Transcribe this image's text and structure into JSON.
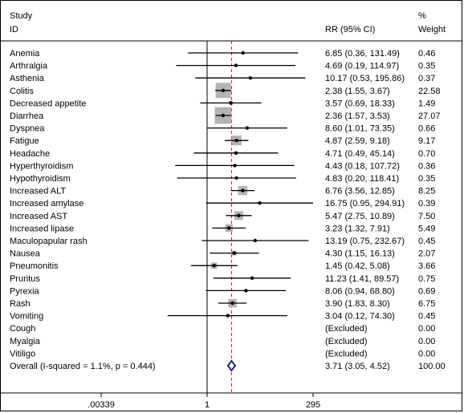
{
  "chart_data": {
    "type": "forest",
    "header": {
      "study_label_1": "Study",
      "study_label_2": "ID",
      "effect_label": "RR (95% CI)",
      "weight_label_1": "%",
      "weight_label_2": "Weight"
    },
    "x_scale": "log",
    "null_value": 1,
    "overall_line_value": 3.71,
    "x_ticks": [
      {
        "value": 0.00339,
        "label": ".00339"
      },
      {
        "value": 1,
        "label": "1"
      },
      {
        "value": 295,
        "label": "295"
      }
    ],
    "studies": [
      {
        "id": "Anemia",
        "rr": 6.85,
        "lo": 0.36,
        "hi": 131.49,
        "ci_text": "6.85 (0.36, 131.49)",
        "weight": 0.46,
        "weight_text": "0.46"
      },
      {
        "id": "Arthralgia",
        "rr": 4.69,
        "lo": 0.19,
        "hi": 114.97,
        "ci_text": "4.69 (0.19, 114.97)",
        "weight": 0.35,
        "weight_text": "0.35"
      },
      {
        "id": "Asthenia",
        "rr": 10.17,
        "lo": 0.53,
        "hi": 195.86,
        "ci_text": "10.17 (0.53, 195.86)",
        "weight": 0.37,
        "weight_text": "0.37"
      },
      {
        "id": "Colitis",
        "rr": 2.38,
        "lo": 1.55,
        "hi": 3.67,
        "ci_text": "2.38 (1.55, 3.67)",
        "weight": 22.58,
        "weight_text": "22.58"
      },
      {
        "id": "Decreased appetite",
        "rr": 3.57,
        "lo": 0.69,
        "hi": 18.33,
        "ci_text": "3.57 (0.69, 18.33)",
        "weight": 1.49,
        "weight_text": "1.49"
      },
      {
        "id": "Diarrhea",
        "rr": 2.36,
        "lo": 1.57,
        "hi": 3.53,
        "ci_text": "2.36 (1.57, 3.53)",
        "weight": 27.07,
        "weight_text": "27.07"
      },
      {
        "id": "Dyspnea",
        "rr": 8.6,
        "lo": 1.01,
        "hi": 73.35,
        "ci_text": "8.60 (1.01, 73.35)",
        "weight": 0.66,
        "weight_text": "0.66"
      },
      {
        "id": "Fatigue",
        "rr": 4.87,
        "lo": 2.59,
        "hi": 9.18,
        "ci_text": "4.87 (2.59, 9.18)",
        "weight": 9.17,
        "weight_text": "9.17"
      },
      {
        "id": "Headache",
        "rr": 4.71,
        "lo": 0.49,
        "hi": 45.14,
        "ci_text": "4.71 (0.49, 45.14)",
        "weight": 0.7,
        "weight_text": "0.70"
      },
      {
        "id": "Hyperthyroidism",
        "rr": 4.43,
        "lo": 0.18,
        "hi": 107.72,
        "ci_text": "4.43 (0.18, 107.72)",
        "weight": 0.36,
        "weight_text": "0.36"
      },
      {
        "id": "Hypothyroidism",
        "rr": 4.83,
        "lo": 0.2,
        "hi": 118.41,
        "ci_text": "4.83 (0.20, 118.41)",
        "weight": 0.35,
        "weight_text": "0.35"
      },
      {
        "id": "Increased ALT",
        "rr": 6.76,
        "lo": 3.56,
        "hi": 12.85,
        "ci_text": "6.76 (3.56, 12.85)",
        "weight": 8.25,
        "weight_text": "8.25"
      },
      {
        "id": "Increased amylase",
        "rr": 16.75,
        "lo": 0.95,
        "hi": 294.91,
        "ci_text": "16.75 (0.95, 294.91)",
        "weight": 0.39,
        "weight_text": "0.39"
      },
      {
        "id": "Increased AST",
        "rr": 5.47,
        "lo": 2.75,
        "hi": 10.89,
        "ci_text": "5.47 (2.75, 10.89)",
        "weight": 7.5,
        "weight_text": "7.50"
      },
      {
        "id": "Increased lipase",
        "rr": 3.23,
        "lo": 1.32,
        "hi": 7.91,
        "ci_text": "3.23 (1.32, 7.91)",
        "weight": 5.49,
        "weight_text": "5.49"
      },
      {
        "id": "Maculopapular rash",
        "rr": 13.19,
        "lo": 0.75,
        "hi": 232.67,
        "ci_text": "13.19 (0.75, 232.67)",
        "weight": 0.45,
        "weight_text": "0.45"
      },
      {
        "id": "Nausea",
        "rr": 4.3,
        "lo": 1.15,
        "hi": 16.13,
        "ci_text": "4.30 (1.15, 16.13)",
        "weight": 2.07,
        "weight_text": "2.07"
      },
      {
        "id": "Pneumonitis",
        "rr": 1.45,
        "lo": 0.42,
        "hi": 5.08,
        "ci_text": "1.45 (0.42, 5.08)",
        "weight": 3.66,
        "weight_text": "3.66"
      },
      {
        "id": "Pruritus",
        "rr": 11.23,
        "lo": 1.41,
        "hi": 89.57,
        "ci_text": "11.23 (1.41, 89.57)",
        "weight": 0.75,
        "weight_text": "0.75"
      },
      {
        "id": "Pyrexia",
        "rr": 8.06,
        "lo": 0.94,
        "hi": 68.8,
        "ci_text": "8.06 (0.94, 68.80)",
        "weight": 0.69,
        "weight_text": "0.69"
      },
      {
        "id": "Rash",
        "rr": 3.9,
        "lo": 1.83,
        "hi": 8.3,
        "ci_text": "3.90 (1.83, 8.30)",
        "weight": 6.75,
        "weight_text": "6.75"
      },
      {
        "id": "Vomiting",
        "rr": 3.04,
        "lo": 0.12,
        "hi": 74.3,
        "ci_text": "3.04 (0.12, 74.30)",
        "weight": 0.45,
        "weight_text": "0.45"
      },
      {
        "id": "Cough",
        "rr": null,
        "lo": null,
        "hi": null,
        "ci_text": "(Excluded)",
        "weight": 0.0,
        "weight_text": "0.00"
      },
      {
        "id": "Myalgia",
        "rr": null,
        "lo": null,
        "hi": null,
        "ci_text": "(Excluded)",
        "weight": 0.0,
        "weight_text": "0.00"
      },
      {
        "id": "Vitiligo",
        "rr": null,
        "lo": null,
        "hi": null,
        "ci_text": "(Excluded)",
        "weight": 0.0,
        "weight_text": "0.00"
      }
    ],
    "overall": {
      "id": "Overall  (I-squared = 1.1%, p = 0.444)",
      "rr": 3.71,
      "lo": 3.05,
      "hi": 4.52,
      "ci_text": "3.71 (3.05, 4.52)",
      "weight_text": "100.00"
    },
    "colors": {
      "weight_box": "#b3b3b3",
      "overall_diamond": "#1a237e",
      "overall_line": "#c2185b",
      "line": "#000000"
    }
  }
}
